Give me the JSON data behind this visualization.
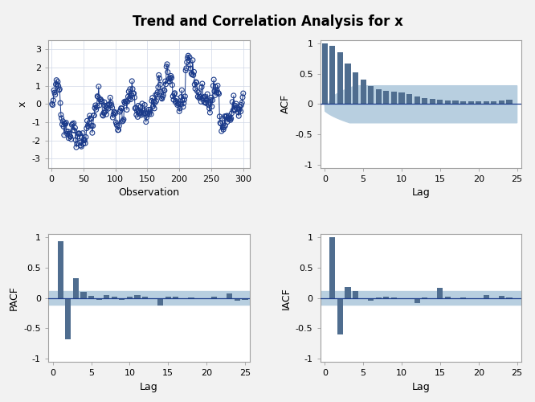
{
  "title": "Trend and Correlation Analysis for x",
  "title_fontsize": 12,
  "bg_color": "#f2f2f2",
  "panel_bg": "#ffffff",
  "bar_color": "#4f6d8f",
  "conf_band_color": "#b8cfe0",
  "line_color": "#1a3a8a",
  "scatter_facecolor": "none",
  "scatter_edgecolor": "#1a3a8a",
  "n_obs": 300,
  "seed": 42,
  "acf_values": [
    1.0,
    0.955,
    0.845,
    0.665,
    0.52,
    0.4,
    0.3,
    0.245,
    0.22,
    0.205,
    0.19,
    0.17,
    0.12,
    0.1,
    0.085,
    0.07,
    0.06,
    0.055,
    0.05,
    0.045,
    0.04,
    0.04,
    0.05,
    0.055,
    0.065
  ],
  "pacf_values": [
    0.0,
    0.93,
    -0.68,
    0.33,
    0.1,
    0.04,
    -0.03,
    0.05,
    0.02,
    -0.03,
    0.02,
    0.05,
    0.02,
    -0.02,
    -0.12,
    0.02,
    0.02,
    -0.01,
    0.01,
    -0.01,
    0.0,
    0.02,
    -0.01,
    0.07,
    -0.04,
    -0.03
  ],
  "iacf_values": [
    0.0,
    1.0,
    -0.6,
    0.18,
    0.12,
    -0.02,
    -0.04,
    0.01,
    0.02,
    0.01,
    -0.01,
    0.0,
    -0.09,
    0.01,
    0.0,
    0.17,
    0.02,
    -0.01,
    0.01,
    -0.01,
    0.0,
    0.05,
    -0.02,
    0.04,
    0.01,
    -0.02
  ],
  "xlim_series": [
    -5,
    310
  ],
  "ylim_series": [
    -3.5,
    3.5
  ],
  "yticks_series": [
    -3,
    -2,
    -1,
    0,
    1,
    2,
    3
  ],
  "xticks_series": [
    0,
    50,
    100,
    150,
    200,
    250,
    300
  ],
  "ylim_acf": [
    -1.05,
    1.05
  ],
  "yticks_acf": [
    -1.0,
    -0.5,
    0.0,
    0.5,
    1.0
  ],
  "xlim_acf": [
    -0.6,
    25.6
  ],
  "xticks_acf": [
    0,
    5,
    10,
    15,
    20,
    25
  ],
  "xlim_pacf": [
    -0.6,
    25.6
  ],
  "xticks_pacf": [
    0,
    5,
    10,
    15,
    20,
    25
  ],
  "ylim_pacf": [
    -1.05,
    1.05
  ],
  "yticks_pacf": [
    -1.0,
    -0.5,
    0.0,
    0.5,
    1.0
  ],
  "xlabel_series": "Observation",
  "ylabel_series": "x",
  "xlabel_acf": "Lag",
  "ylabel_acf": "ACF",
  "xlabel_pacf": "Lag",
  "ylabel_pacf": "PACF",
  "xlabel_iacf": "Lag",
  "ylabel_iacf": "IACF",
  "axis_label_fontsize": 9,
  "tick_fontsize": 8,
  "bar_width": 0.75,
  "conf_flat": 0.113,
  "scatter_size": 18,
  "scatter_lw": 0.8,
  "ts_lw": 0.7
}
